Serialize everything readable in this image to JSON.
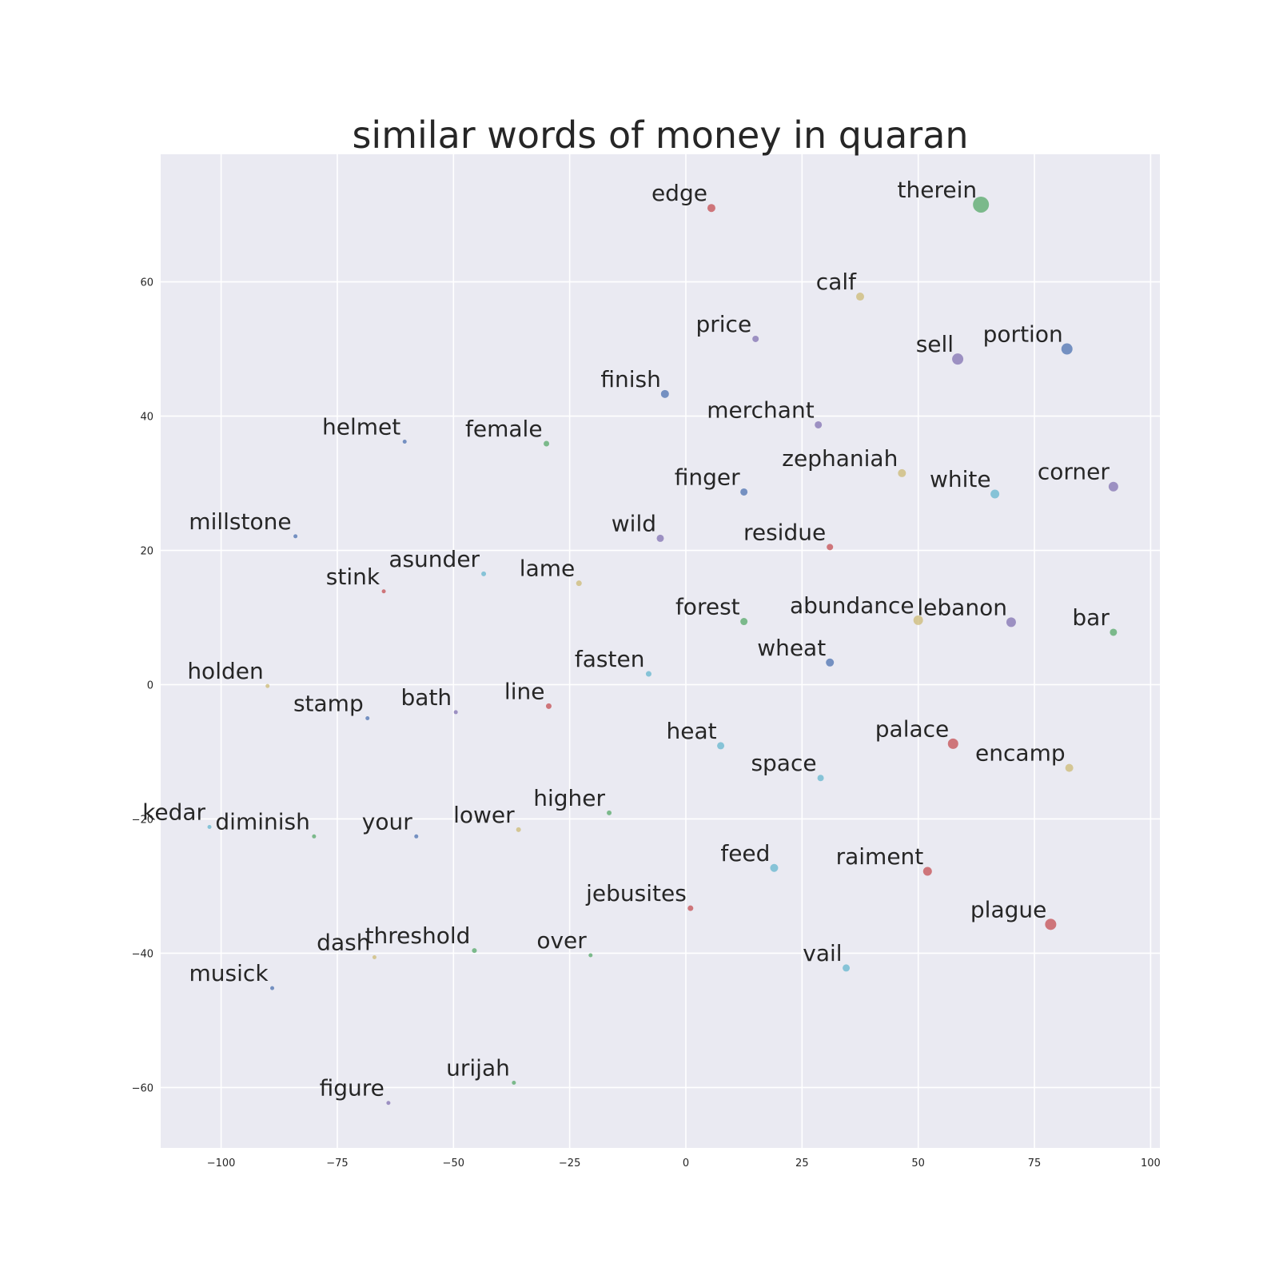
{
  "chart_data": {
    "type": "scatter",
    "title": "similar words of money in quaran",
    "xlabel": "",
    "ylabel": "",
    "xlim": [
      -113,
      102
    ],
    "ylim": [
      -69,
      79
    ],
    "xticks": [
      -100,
      -75,
      -50,
      -25,
      0,
      25,
      50,
      75,
      100
    ],
    "xtick_labels": [
      "−100",
      "−75",
      "−50",
      "−25",
      "0",
      "25",
      "50",
      "75",
      "100"
    ],
    "yticks": [
      -60,
      -40,
      -20,
      0,
      20,
      40,
      60
    ],
    "ytick_labels": [
      "−60",
      "−40",
      "−20",
      "0",
      "20",
      "40",
      "60"
    ],
    "grid": true,
    "palette": {
      "blue": "#4c72b0",
      "green": "#55a868",
      "red": "#c44e52",
      "purple": "#8172b2",
      "yellow": "#ccb974",
      "cyan": "#64b5cd"
    },
    "points": [
      {
        "label": "therein",
        "x": 63.5,
        "y": 71.5,
        "size": 10,
        "color": "green"
      },
      {
        "label": "edge",
        "x": 5.5,
        "y": 71.0,
        "size": 5,
        "color": "red"
      },
      {
        "label": "calf",
        "x": 37.5,
        "y": 57.8,
        "size": 5,
        "color": "yellow"
      },
      {
        "label": "price",
        "x": 15.0,
        "y": 51.5,
        "size": 4,
        "color": "purple"
      },
      {
        "label": "sell",
        "x": 58.5,
        "y": 48.5,
        "size": 7,
        "color": "purple"
      },
      {
        "label": "portion",
        "x": 82.0,
        "y": 50.0,
        "size": 7,
        "color": "blue"
      },
      {
        "label": "finish",
        "x": -4.5,
        "y": 43.3,
        "size": 5,
        "color": "blue"
      },
      {
        "label": "merchant",
        "x": 28.5,
        "y": 38.7,
        "size": 4.5,
        "color": "purple"
      },
      {
        "label": "helmet",
        "x": -60.5,
        "y": 36.2,
        "size": 2.5,
        "color": "blue"
      },
      {
        "label": "female",
        "x": -30.0,
        "y": 35.9,
        "size": 3.5,
        "color": "green"
      },
      {
        "label": "zephaniah",
        "x": 46.5,
        "y": 31.5,
        "size": 5,
        "color": "yellow"
      },
      {
        "label": "finger",
        "x": 12.5,
        "y": 28.7,
        "size": 4.5,
        "color": "blue"
      },
      {
        "label": "white",
        "x": 66.5,
        "y": 28.4,
        "size": 5.5,
        "color": "cyan"
      },
      {
        "label": "corner",
        "x": 92.0,
        "y": 29.5,
        "size": 6,
        "color": "purple"
      },
      {
        "label": "millstone",
        "x": -84.0,
        "y": 22.1,
        "size": 2.5,
        "color": "blue"
      },
      {
        "label": "wild",
        "x": -5.5,
        "y": 21.8,
        "size": 4.5,
        "color": "purple"
      },
      {
        "label": "residue",
        "x": 31.0,
        "y": 20.5,
        "size": 4,
        "color": "red"
      },
      {
        "label": "asunder",
        "x": -43.5,
        "y": 16.5,
        "size": 3,
        "color": "cyan"
      },
      {
        "label": "lame",
        "x": -23.0,
        "y": 15.1,
        "size": 3.5,
        "color": "yellow"
      },
      {
        "label": "stink",
        "x": -65.0,
        "y": 13.9,
        "size": 2.5,
        "color": "red"
      },
      {
        "label": "forest",
        "x": 12.5,
        "y": 9.4,
        "size": 4.5,
        "color": "green"
      },
      {
        "label": "abundance",
        "x": 50.0,
        "y": 9.6,
        "size": 6,
        "color": "yellow"
      },
      {
        "label": "lebanon",
        "x": 70.0,
        "y": 9.3,
        "size": 6,
        "color": "purple"
      },
      {
        "label": "bar",
        "x": 92.0,
        "y": 7.8,
        "size": 4.5,
        "color": "green"
      },
      {
        "label": "wheat",
        "x": 31.0,
        "y": 3.3,
        "size": 5,
        "color": "blue"
      },
      {
        "label": "fasten",
        "x": -8.0,
        "y": 1.6,
        "size": 3.5,
        "color": "cyan"
      },
      {
        "label": "holden",
        "x": -90.0,
        "y": -0.2,
        "size": 2.5,
        "color": "yellow"
      },
      {
        "label": "line",
        "x": -29.5,
        "y": -3.2,
        "size": 3.5,
        "color": "red"
      },
      {
        "label": "bath",
        "x": -49.5,
        "y": -4.1,
        "size": 2.5,
        "color": "purple"
      },
      {
        "label": "stamp",
        "x": -68.5,
        "y": -5.0,
        "size": 2.5,
        "color": "blue"
      },
      {
        "label": "heat",
        "x": 7.5,
        "y": -9.1,
        "size": 4.5,
        "color": "cyan"
      },
      {
        "label": "palace",
        "x": 57.5,
        "y": -8.8,
        "size": 6.5,
        "color": "red"
      },
      {
        "label": "encamp",
        "x": 82.5,
        "y": -12.4,
        "size": 5,
        "color": "yellow"
      },
      {
        "label": "space",
        "x": 29.0,
        "y": -13.9,
        "size": 4,
        "color": "cyan"
      },
      {
        "label": "higher",
        "x": -16.5,
        "y": -19.1,
        "size": 3,
        "color": "green"
      },
      {
        "label": "lower",
        "x": -36.0,
        "y": -21.6,
        "size": 3,
        "color": "yellow"
      },
      {
        "label": "kedar",
        "x": -102.5,
        "y": -21.2,
        "size": 2.5,
        "color": "cyan"
      },
      {
        "label": "diminish",
        "x": -80.0,
        "y": -22.6,
        "size": 2.5,
        "color": "green"
      },
      {
        "label": "your",
        "x": -58.0,
        "y": -22.6,
        "size": 2.5,
        "color": "blue"
      },
      {
        "label": "feed",
        "x": 19.0,
        "y": -27.3,
        "size": 5,
        "color": "cyan"
      },
      {
        "label": "raiment",
        "x": 52.0,
        "y": -27.8,
        "size": 5.5,
        "color": "red"
      },
      {
        "label": "jebusites",
        "x": 1.0,
        "y": -33.3,
        "size": 3.5,
        "color": "red"
      },
      {
        "label": "plague",
        "x": 78.5,
        "y": -35.7,
        "size": 7,
        "color": "red"
      },
      {
        "label": "threshold",
        "x": -45.5,
        "y": -39.6,
        "size": 3,
        "color": "green"
      },
      {
        "label": "over",
        "x": -20.5,
        "y": -40.3,
        "size": 2.5,
        "color": "green"
      },
      {
        "label": "dash",
        "x": -67.0,
        "y": -40.6,
        "size": 2.5,
        "color": "yellow"
      },
      {
        "label": "vail",
        "x": 34.5,
        "y": -42.2,
        "size": 4.5,
        "color": "cyan"
      },
      {
        "label": "musick",
        "x": -89.0,
        "y": -45.2,
        "size": 2.5,
        "color": "blue"
      },
      {
        "label": "urijah",
        "x": -37.0,
        "y": -59.3,
        "size": 2.5,
        "color": "green"
      },
      {
        "label": "figure",
        "x": -64.0,
        "y": -62.3,
        "size": 2.5,
        "color": "purple"
      }
    ]
  }
}
